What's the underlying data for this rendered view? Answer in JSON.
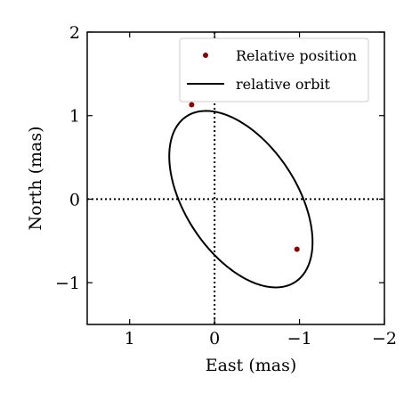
{
  "chart_data": {
    "type": "scatter",
    "xlabel": "East (mas)",
    "ylabel": "North (mas)",
    "xlim": [
      1.5,
      -2
    ],
    "ylim": [
      -1.5,
      2
    ],
    "x_ticks": [
      1,
      0,
      -1,
      -2
    ],
    "x_tick_labels": [
      "1",
      "0",
      "−1",
      "−2"
    ],
    "y_ticks": [
      2,
      1,
      0,
      -1
    ],
    "y_tick_labels": [
      "2",
      "1",
      "0",
      "−1"
    ],
    "zero_lines": {
      "style": "dotted",
      "x": 0,
      "y": 0
    },
    "legend_position": "top-right",
    "series": [
      {
        "name": "Relative position",
        "kind": "points",
        "color": "#8b0000",
        "points": [
          {
            "x": 0.27,
            "y": 1.13
          },
          {
            "x": -0.97,
            "y": -0.6
          }
        ]
      },
      {
        "name": "relative orbit",
        "kind": "ellipse",
        "color": "#000000",
        "center": {
          "x": -0.31,
          "y": 0.0
        },
        "semi_axes": [
          1.18,
          0.66
        ],
        "rotation_deg": 32.5
      }
    ]
  }
}
